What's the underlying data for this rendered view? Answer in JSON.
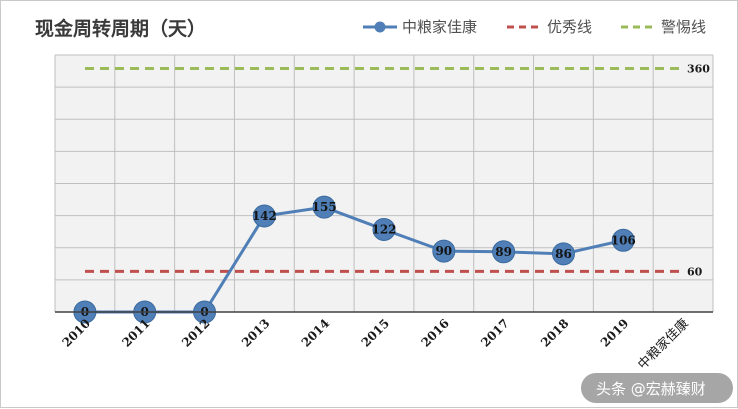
{
  "chart_data": {
    "type": "line",
    "title": "现金周转周期（天）",
    "categories": [
      "2010",
      "2011",
      "2012",
      "2013",
      "2014",
      "2015",
      "2016",
      "2017",
      "2018",
      "2019"
    ],
    "extra_category_label": "中粮家佳康",
    "ylim": [
      0,
      380
    ],
    "grid": true,
    "legend_position": "top-right",
    "series": [
      {
        "name": "中粮家佳康",
        "values": [
          0,
          0,
          0,
          142,
          155,
          122,
          90,
          89,
          86,
          106
        ],
        "data_labels": [
          "0",
          "0",
          "0",
          "142",
          "155",
          "122",
          "90",
          "89",
          "86",
          "106"
        ],
        "color": "#4f7fb6",
        "marker": "circle"
      }
    ],
    "reference_lines": [
      {
        "name": "优秀线",
        "value": 60,
        "label": "60",
        "color": "#c0504d",
        "style": "dashed"
      },
      {
        "name": "警惕线",
        "value": 360,
        "label": "360",
        "color": "#9bbb59",
        "style": "dashed"
      }
    ],
    "colors": {
      "plot_background": "#f2f2f2",
      "gridline": "#bfbfbf",
      "axis": "#404040"
    }
  },
  "watermark": {
    "text": "头条 @宏赫臻财"
  }
}
